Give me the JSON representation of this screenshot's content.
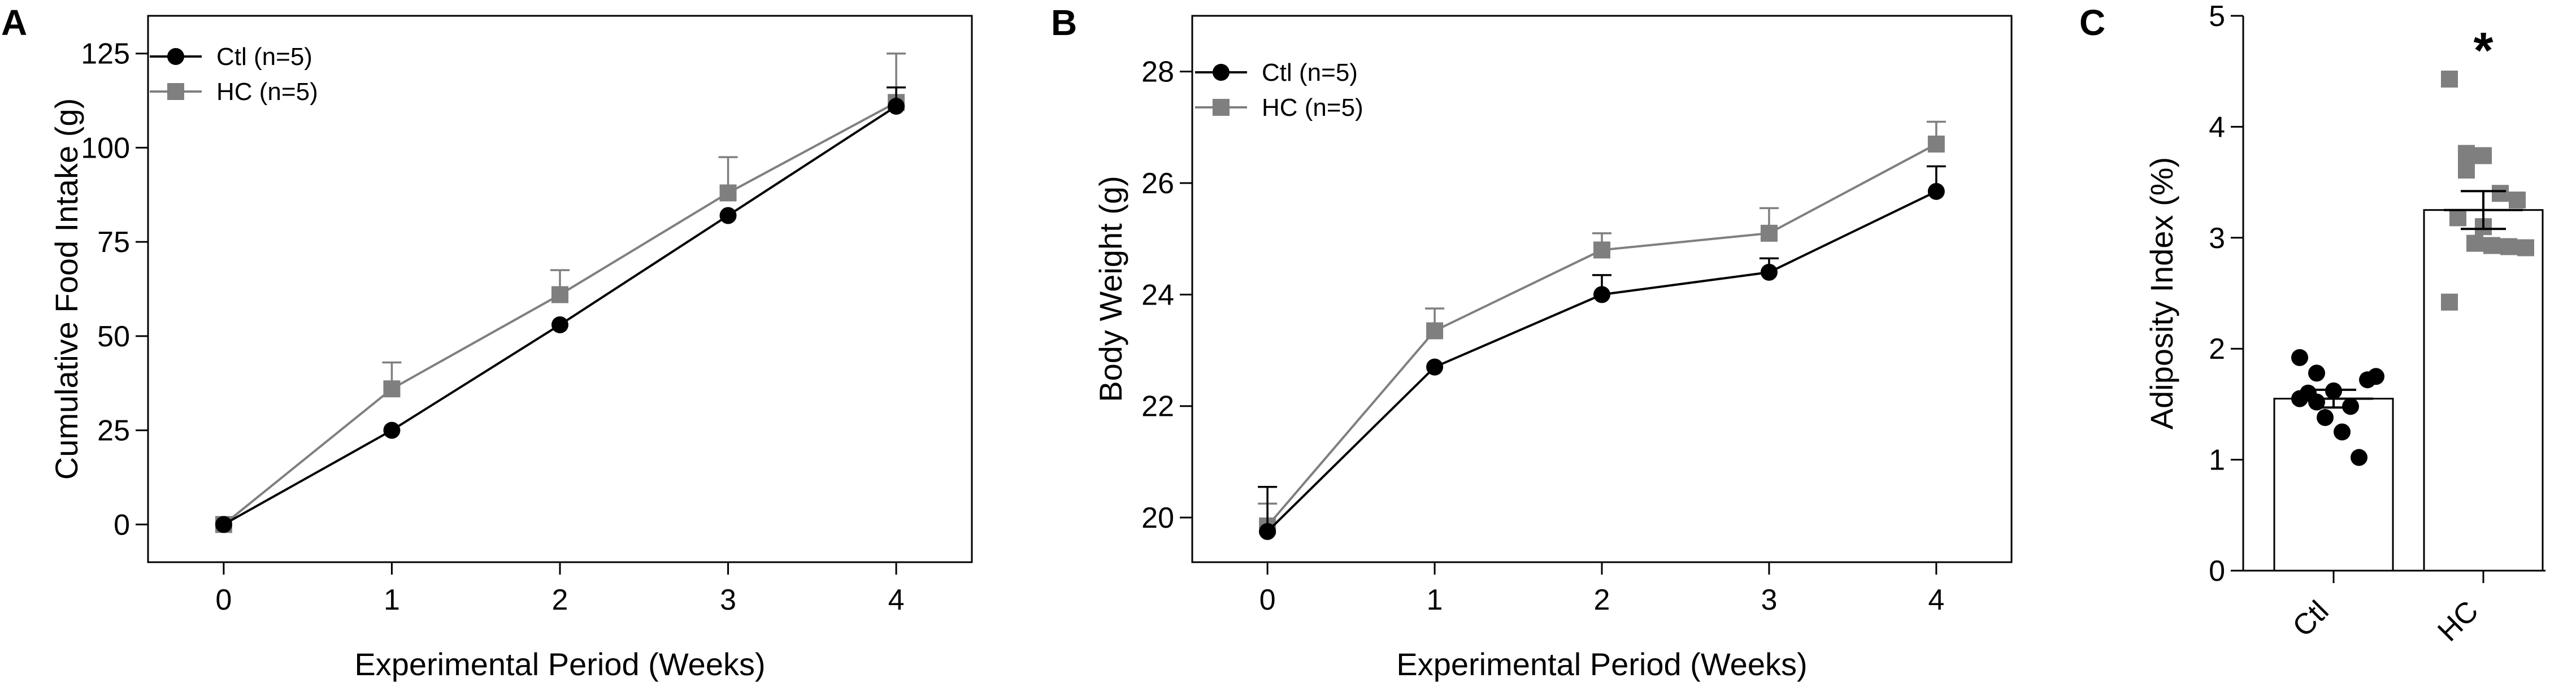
{
  "colors": {
    "ctl": "#000000",
    "hc": "#7f7f7f",
    "axis": "#000000"
  },
  "chart_data": [
    {
      "panel": "A",
      "type": "line",
      "xlabel": "Experimental Period (Weeks)",
      "ylabel": "Cumulative Food Intake (g)",
      "x": [
        0,
        1,
        2,
        3,
        4
      ],
      "xticks": [
        "0",
        "1",
        "2",
        "3",
        "4"
      ],
      "yticks": [
        "0",
        "25",
        "50",
        "75",
        "100",
        "125"
      ],
      "ylim": [
        -10,
        135
      ],
      "legend_position": "top-left",
      "series": [
        {
          "name": "Ctl (n=5)",
          "key": "ctl",
          "marker": "circle",
          "values": [
            0,
            25,
            53,
            82,
            111
          ],
          "errors": [
            0,
            0,
            0,
            0,
            5
          ]
        },
        {
          "name": "HC (n=5)",
          "key": "hc",
          "marker": "square",
          "values": [
            0,
            36,
            61,
            88,
            112
          ],
          "errors": [
            0,
            7,
            6.5,
            9.5,
            13
          ]
        }
      ]
    },
    {
      "panel": "B",
      "type": "line",
      "xlabel": "Experimental Period (Weeks)",
      "ylabel": "Body Weight (g)",
      "x": [
        0,
        1,
        2,
        3,
        4
      ],
      "xticks": [
        "0",
        "1",
        "2",
        "3",
        "4"
      ],
      "yticks": [
        "20",
        "22",
        "24",
        "26",
        "28"
      ],
      "ylim": [
        19.2,
        29.0
      ],
      "legend_position": "top-left",
      "series": [
        {
          "name": "Ctl (n=5)",
          "key": "ctl",
          "marker": "circle",
          "values": [
            19.75,
            22.7,
            24.0,
            24.4,
            25.85
          ],
          "errors": [
            0.8,
            0,
            0.35,
            0.25,
            0.45
          ]
        },
        {
          "name": "HC (n=5)",
          "key": "hc",
          "marker": "square",
          "values": [
            19.85,
            23.35,
            24.8,
            25.1,
            26.7
          ],
          "errors": [
            0.4,
            0.4,
            0.3,
            0.45,
            0.4
          ]
        }
      ]
    },
    {
      "panel": "C",
      "type": "bar",
      "ylabel": "Adiposity Index (%)",
      "categories": [
        "Ctl",
        "HC"
      ],
      "yticks": [
        "0",
        "1",
        "2",
        "3",
        "4",
        "5"
      ],
      "ylim": [
        0,
        5
      ],
      "significance": "*",
      "bars": [
        {
          "key": "ctl",
          "marker": "circle",
          "mean": 1.55,
          "sem": 0.08,
          "points": [
            1.92,
            1.78,
            1.62,
            1.48,
            1.72,
            1.6,
            1.38,
            1.25,
            1.02,
            1.75,
            1.55,
            1.52
          ]
        },
        {
          "key": "hc",
          "marker": "square",
          "mean": 3.25,
          "sem": 0.17,
          "points": [
            4.43,
            3.76,
            3.74,
            3.4,
            3.34,
            3.18,
            2.95,
            2.93,
            2.92,
            2.91,
            2.42,
            3.61,
            3.1
          ]
        }
      ]
    }
  ]
}
